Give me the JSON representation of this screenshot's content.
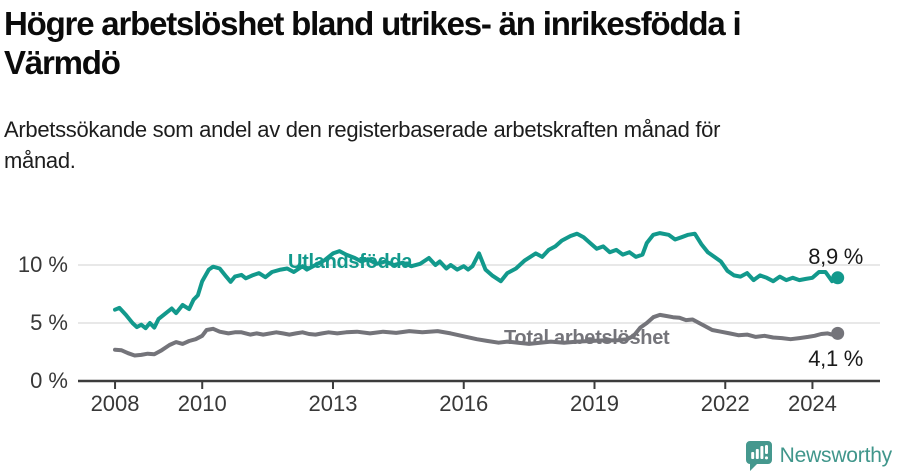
{
  "header": {
    "title_lines": [
      "Högre arbetslöshet bland utrikes- än inrikesfödda i",
      "Värmdö"
    ],
    "subtitle_lines": [
      "Arbetssökande som andel av den registerbaserade arbetskraften månad för",
      "månad."
    ]
  },
  "chart_data": {
    "type": "line",
    "title": "Högre arbetslöshet bland utrikes- än inrikesfödda i Värmdö",
    "subtitle": "Arbetssökande som andel av den registerbaserade arbetskraften månad för månad.",
    "xlabel": "",
    "ylabel": "",
    "grid": "horizontal",
    "x_axis": {
      "ticks": [
        2008,
        2010,
        2013,
        2016,
        2019,
        2022,
        2024
      ],
      "range": [
        2007.15,
        2025.55
      ]
    },
    "y_axis": {
      "ticks": [
        0,
        5,
        10
      ],
      "suffix": " %",
      "range": [
        0,
        13.9
      ]
    },
    "axis_color": "#3c3c3c",
    "grid_color": "#d9d9d9",
    "tick_label_color": "#383838",
    "series": [
      {
        "name": "Utlandsfödda",
        "color": "#12998c",
        "end_label": "8,9 %",
        "end_value": 8.9,
        "points": [
          [
            2008.0,
            6.15
          ],
          [
            2008.1,
            6.3
          ],
          [
            2008.25,
            5.7
          ],
          [
            2008.4,
            5.0
          ],
          [
            2008.5,
            4.65
          ],
          [
            2008.6,
            4.85
          ],
          [
            2008.7,
            4.55
          ],
          [
            2008.8,
            5.0
          ],
          [
            2008.9,
            4.6
          ],
          [
            2009.0,
            5.35
          ],
          [
            2009.15,
            5.8
          ],
          [
            2009.3,
            6.25
          ],
          [
            2009.4,
            5.85
          ],
          [
            2009.55,
            6.55
          ],
          [
            2009.7,
            6.2
          ],
          [
            2009.8,
            7.0
          ],
          [
            2009.9,
            7.4
          ],
          [
            2010.0,
            8.6
          ],
          [
            2010.15,
            9.6
          ],
          [
            2010.25,
            9.85
          ],
          [
            2010.4,
            9.7
          ],
          [
            2010.55,
            9.0
          ],
          [
            2010.65,
            8.55
          ],
          [
            2010.75,
            9.0
          ],
          [
            2010.9,
            9.15
          ],
          [
            2011.0,
            8.85
          ],
          [
            2011.15,
            9.1
          ],
          [
            2011.3,
            9.3
          ],
          [
            2011.45,
            8.95
          ],
          [
            2011.6,
            9.4
          ],
          [
            2011.8,
            9.6
          ],
          [
            2011.95,
            9.7
          ],
          [
            2012.1,
            9.4
          ],
          [
            2012.3,
            9.9
          ],
          [
            2012.4,
            9.6
          ],
          [
            2012.6,
            10.0
          ],
          [
            2012.8,
            10.4
          ],
          [
            2013.0,
            11.0
          ],
          [
            2013.15,
            11.2
          ],
          [
            2013.3,
            10.9
          ],
          [
            2013.5,
            10.6
          ],
          [
            2013.65,
            10.3
          ],
          [
            2013.8,
            10.5
          ],
          [
            2014.0,
            10.1
          ],
          [
            2014.2,
            10.3
          ],
          [
            2014.4,
            10.0
          ],
          [
            2014.6,
            10.2
          ],
          [
            2014.8,
            9.9
          ],
          [
            2015.0,
            10.1
          ],
          [
            2015.2,
            10.6
          ],
          [
            2015.35,
            10.0
          ],
          [
            2015.45,
            10.3
          ],
          [
            2015.6,
            9.7
          ],
          [
            2015.7,
            10.0
          ],
          [
            2015.85,
            9.6
          ],
          [
            2016.0,
            9.9
          ],
          [
            2016.1,
            9.6
          ],
          [
            2016.2,
            9.9
          ],
          [
            2016.35,
            11.0
          ],
          [
            2016.5,
            9.6
          ],
          [
            2016.65,
            9.1
          ],
          [
            2016.85,
            8.6
          ],
          [
            2017.0,
            9.3
          ],
          [
            2017.2,
            9.7
          ],
          [
            2017.4,
            10.4
          ],
          [
            2017.65,
            11.0
          ],
          [
            2017.8,
            10.7
          ],
          [
            2017.95,
            11.3
          ],
          [
            2018.1,
            11.6
          ],
          [
            2018.25,
            12.1
          ],
          [
            2018.45,
            12.5
          ],
          [
            2018.6,
            12.7
          ],
          [
            2018.75,
            12.4
          ],
          [
            2018.9,
            11.9
          ],
          [
            2019.05,
            11.4
          ],
          [
            2019.2,
            11.6
          ],
          [
            2019.35,
            11.1
          ],
          [
            2019.5,
            11.3
          ],
          [
            2019.65,
            10.9
          ],
          [
            2019.8,
            11.1
          ],
          [
            2019.95,
            10.7
          ],
          [
            2020.1,
            10.9
          ],
          [
            2020.2,
            11.9
          ],
          [
            2020.35,
            12.6
          ],
          [
            2020.5,
            12.75
          ],
          [
            2020.7,
            12.6
          ],
          [
            2020.85,
            12.2
          ],
          [
            2021.0,
            12.4
          ],
          [
            2021.15,
            12.6
          ],
          [
            2021.3,
            12.7
          ],
          [
            2021.45,
            11.8
          ],
          [
            2021.6,
            11.1
          ],
          [
            2021.75,
            10.7
          ],
          [
            2021.9,
            10.3
          ],
          [
            2022.05,
            9.5
          ],
          [
            2022.2,
            9.1
          ],
          [
            2022.35,
            9.0
          ],
          [
            2022.5,
            9.3
          ],
          [
            2022.65,
            8.7
          ],
          [
            2022.8,
            9.1
          ],
          [
            2022.95,
            8.9
          ],
          [
            2023.1,
            8.6
          ],
          [
            2023.25,
            9.0
          ],
          [
            2023.4,
            8.7
          ],
          [
            2023.55,
            8.9
          ],
          [
            2023.7,
            8.7
          ],
          [
            2023.85,
            8.8
          ],
          [
            2024.0,
            8.9
          ],
          [
            2024.15,
            9.4
          ],
          [
            2024.3,
            9.4
          ],
          [
            2024.45,
            8.6
          ],
          [
            2024.58,
            8.9
          ]
        ]
      },
      {
        "name": "Total arbetslöshet",
        "color": "#74747a",
        "end_label": "4,1 %",
        "end_value": 4.1,
        "points": [
          [
            2008.0,
            2.7
          ],
          [
            2008.15,
            2.65
          ],
          [
            2008.3,
            2.4
          ],
          [
            2008.45,
            2.2
          ],
          [
            2008.6,
            2.25
          ],
          [
            2008.75,
            2.35
          ],
          [
            2008.9,
            2.3
          ],
          [
            2009.05,
            2.6
          ],
          [
            2009.25,
            3.1
          ],
          [
            2009.4,
            3.35
          ],
          [
            2009.55,
            3.2
          ],
          [
            2009.7,
            3.45
          ],
          [
            2009.85,
            3.6
          ],
          [
            2010.0,
            3.9
          ],
          [
            2010.1,
            4.4
          ],
          [
            2010.25,
            4.5
          ],
          [
            2010.4,
            4.25
          ],
          [
            2010.6,
            4.1
          ],
          [
            2010.75,
            4.2
          ],
          [
            2010.9,
            4.2
          ],
          [
            2011.1,
            4.0
          ],
          [
            2011.25,
            4.1
          ],
          [
            2011.4,
            4.0
          ],
          [
            2011.7,
            4.2
          ],
          [
            2011.85,
            4.1
          ],
          [
            2012.0,
            4.0
          ],
          [
            2012.15,
            4.1
          ],
          [
            2012.3,
            4.2
          ],
          [
            2012.45,
            4.05
          ],
          [
            2012.6,
            4.0
          ],
          [
            2012.75,
            4.1
          ],
          [
            2012.9,
            4.2
          ],
          [
            2013.1,
            4.1
          ],
          [
            2013.3,
            4.2
          ],
          [
            2013.55,
            4.25
          ],
          [
            2013.85,
            4.1
          ],
          [
            2014.15,
            4.25
          ],
          [
            2014.45,
            4.15
          ],
          [
            2014.75,
            4.3
          ],
          [
            2015.05,
            4.2
          ],
          [
            2015.4,
            4.3
          ],
          [
            2015.7,
            4.1
          ],
          [
            2016.0,
            3.85
          ],
          [
            2016.3,
            3.6
          ],
          [
            2016.55,
            3.45
          ],
          [
            2016.8,
            3.3
          ],
          [
            2017.0,
            3.4
          ],
          [
            2017.25,
            3.3
          ],
          [
            2017.5,
            3.2
          ],
          [
            2017.75,
            3.3
          ],
          [
            2018.0,
            3.4
          ],
          [
            2018.3,
            3.3
          ],
          [
            2018.6,
            3.4
          ],
          [
            2018.9,
            3.45
          ],
          [
            2019.2,
            3.5
          ],
          [
            2019.5,
            3.5
          ],
          [
            2019.75,
            3.6
          ],
          [
            2019.9,
            3.9
          ],
          [
            2020.05,
            4.6
          ],
          [
            2020.2,
            5.0
          ],
          [
            2020.35,
            5.5
          ],
          [
            2020.5,
            5.7
          ],
          [
            2020.65,
            5.6
          ],
          [
            2020.8,
            5.5
          ],
          [
            2020.95,
            5.45
          ],
          [
            2021.1,
            5.25
          ],
          [
            2021.25,
            5.3
          ],
          [
            2021.4,
            5.0
          ],
          [
            2021.55,
            4.7
          ],
          [
            2021.7,
            4.4
          ],
          [
            2021.9,
            4.25
          ],
          [
            2022.1,
            4.1
          ],
          [
            2022.3,
            3.95
          ],
          [
            2022.5,
            4.0
          ],
          [
            2022.7,
            3.8
          ],
          [
            2022.9,
            3.9
          ],
          [
            2023.1,
            3.75
          ],
          [
            2023.3,
            3.7
          ],
          [
            2023.5,
            3.6
          ],
          [
            2023.7,
            3.7
          ],
          [
            2023.9,
            3.8
          ],
          [
            2024.05,
            3.9
          ],
          [
            2024.2,
            4.05
          ],
          [
            2024.35,
            4.1
          ],
          [
            2024.5,
            3.95
          ],
          [
            2024.58,
            4.1
          ]
        ]
      }
    ],
    "legend_position": "inline-labels"
  },
  "footer": {
    "brand": "Newsworthy",
    "brand_color": "#40968b",
    "icon": "bar-chart-speech-bubble-icon",
    "icon_color": "#45988e"
  }
}
